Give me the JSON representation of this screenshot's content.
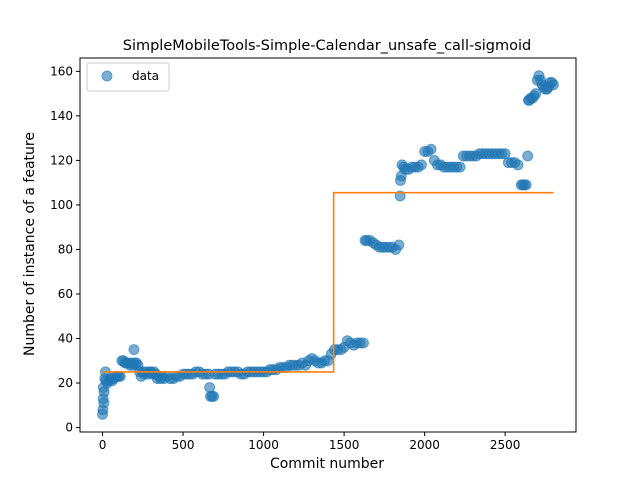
{
  "chart_data": {
    "type": "scatter",
    "title": "SimpleMobileTools-Simple-Calendar_unsafe_call-sigmoid",
    "xlabel": "Commit number",
    "ylabel": "Number of instance of a feature",
    "xlim": [
      -140,
      2940
    ],
    "ylim": [
      -2,
      166
    ],
    "xticks": [
      0,
      500,
      1000,
      1500,
      2000,
      2500
    ],
    "yticks": [
      0,
      20,
      40,
      60,
      80,
      100,
      120,
      140,
      160
    ],
    "legend": {
      "entries": [
        "data"
      ],
      "placement": "top-left"
    },
    "colors": {
      "data": "#1f77b4",
      "fit": "#ff7f0e"
    },
    "series": [
      {
        "name": "data",
        "kind": "scatter",
        "points": [
          [
            0,
            6
          ],
          [
            2,
            8
          ],
          [
            4,
            13
          ],
          [
            5,
            18
          ],
          [
            8,
            11
          ],
          [
            10,
            16
          ],
          [
            14,
            22
          ],
          [
            18,
            25
          ],
          [
            20,
            21
          ],
          [
            30,
            20
          ],
          [
            40,
            21
          ],
          [
            50,
            22
          ],
          [
            60,
            21
          ],
          [
            70,
            22
          ],
          [
            80,
            23
          ],
          [
            90,
            23
          ],
          [
            100,
            23
          ],
          [
            110,
            23
          ],
          [
            120,
            30
          ],
          [
            130,
            30
          ],
          [
            140,
            29
          ],
          [
            150,
            29
          ],
          [
            160,
            29
          ],
          [
            170,
            28
          ],
          [
            180,
            29
          ],
          [
            190,
            28
          ],
          [
            195,
            35
          ],
          [
            200,
            29
          ],
          [
            210,
            29
          ],
          [
            220,
            28
          ],
          [
            230,
            25
          ],
          [
            240,
            23
          ],
          [
            250,
            25
          ],
          [
            260,
            24
          ],
          [
            270,
            25
          ],
          [
            280,
            24
          ],
          [
            290,
            25
          ],
          [
            300,
            25
          ],
          [
            310,
            24
          ],
          [
            320,
            25
          ],
          [
            330,
            24
          ],
          [
            340,
            22
          ],
          [
            350,
            23
          ],
          [
            360,
            22
          ],
          [
            370,
            23
          ],
          [
            380,
            22
          ],
          [
            400,
            23
          ],
          [
            420,
            22
          ],
          [
            440,
            22
          ],
          [
            460,
            23
          ],
          [
            480,
            23
          ],
          [
            500,
            24
          ],
          [
            520,
            24
          ],
          [
            540,
            24
          ],
          [
            560,
            24
          ],
          [
            580,
            25
          ],
          [
            600,
            25
          ],
          [
            620,
            24
          ],
          [
            640,
            24
          ],
          [
            660,
            24
          ],
          [
            665,
            18
          ],
          [
            670,
            14
          ],
          [
            680,
            14
          ],
          [
            690,
            14
          ],
          [
            700,
            24
          ],
          [
            720,
            24
          ],
          [
            740,
            24
          ],
          [
            760,
            24
          ],
          [
            780,
            25
          ],
          [
            800,
            25
          ],
          [
            820,
            25
          ],
          [
            840,
            25
          ],
          [
            860,
            24
          ],
          [
            880,
            24
          ],
          [
            900,
            25
          ],
          [
            920,
            25
          ],
          [
            940,
            25
          ],
          [
            960,
            25
          ],
          [
            980,
            25
          ],
          [
            1000,
            25
          ],
          [
            1020,
            25
          ],
          [
            1040,
            26
          ],
          [
            1060,
            26
          ],
          [
            1080,
            26
          ],
          [
            1100,
            27
          ],
          [
            1120,
            27
          ],
          [
            1140,
            27
          ],
          [
            1160,
            28
          ],
          [
            1180,
            28
          ],
          [
            1200,
            28
          ],
          [
            1220,
            28
          ],
          [
            1240,
            29
          ],
          [
            1260,
            28
          ],
          [
            1280,
            30
          ],
          [
            1300,
            31
          ],
          [
            1320,
            30
          ],
          [
            1340,
            29
          ],
          [
            1360,
            29
          ],
          [
            1380,
            30
          ],
          [
            1400,
            30
          ],
          [
            1420,
            33
          ],
          [
            1440,
            35
          ],
          [
            1460,
            35
          ],
          [
            1480,
            35
          ],
          [
            1500,
            36
          ],
          [
            1520,
            39
          ],
          [
            1540,
            38
          ],
          [
            1560,
            37
          ],
          [
            1580,
            38
          ],
          [
            1600,
            38
          ],
          [
            1620,
            38
          ],
          [
            1630,
            84
          ],
          [
            1640,
            84
          ],
          [
            1660,
            84
          ],
          [
            1680,
            83
          ],
          [
            1700,
            82
          ],
          [
            1720,
            81
          ],
          [
            1740,
            81
          ],
          [
            1760,
            81
          ],
          [
            1780,
            81
          ],
          [
            1800,
            81
          ],
          [
            1820,
            80
          ],
          [
            1840,
            82
          ],
          [
            1848,
            104
          ],
          [
            1850,
            111
          ],
          [
            1855,
            113
          ],
          [
            1860,
            118
          ],
          [
            1870,
            117
          ],
          [
            1880,
            116
          ],
          [
            1900,
            116
          ],
          [
            1920,
            117
          ],
          [
            1940,
            117
          ],
          [
            1960,
            117
          ],
          [
            1980,
            118
          ],
          [
            2000,
            124
          ],
          [
            2020,
            124
          ],
          [
            2040,
            125
          ],
          [
            2060,
            120
          ],
          [
            2080,
            118
          ],
          [
            2100,
            118
          ],
          [
            2120,
            117
          ],
          [
            2140,
            117
          ],
          [
            2160,
            117
          ],
          [
            2180,
            117
          ],
          [
            2200,
            117
          ],
          [
            2220,
            117
          ],
          [
            2240,
            122
          ],
          [
            2260,
            122
          ],
          [
            2280,
            122
          ],
          [
            2300,
            122
          ],
          [
            2320,
            122
          ],
          [
            2340,
            123
          ],
          [
            2360,
            123
          ],
          [
            2380,
            123
          ],
          [
            2400,
            123
          ],
          [
            2420,
            123
          ],
          [
            2440,
            123
          ],
          [
            2460,
            123
          ],
          [
            2480,
            123
          ],
          [
            2500,
            123
          ],
          [
            2520,
            119
          ],
          [
            2540,
            119
          ],
          [
            2560,
            119
          ],
          [
            2580,
            118
          ],
          [
            2600,
            109
          ],
          [
            2610,
            109
          ],
          [
            2620,
            109
          ],
          [
            2630,
            109
          ],
          [
            2640,
            122
          ],
          [
            2645,
            147
          ],
          [
            2650,
            147
          ],
          [
            2660,
            148
          ],
          [
            2670,
            148
          ],
          [
            2680,
            149
          ],
          [
            2690,
            150
          ],
          [
            2700,
            156
          ],
          [
            2710,
            158
          ],
          [
            2720,
            156
          ],
          [
            2730,
            154
          ],
          [
            2740,
            153
          ],
          [
            2750,
            152
          ],
          [
            2760,
            152
          ],
          [
            2770,
            153
          ],
          [
            2780,
            155
          ],
          [
            2790,
            155
          ],
          [
            2800,
            154
          ]
        ]
      },
      {
        "kind": "step-line",
        "points": [
          [
            0,
            25
          ],
          [
            1435,
            25
          ],
          [
            1435,
            105.5
          ],
          [
            2800,
            105.5
          ]
        ]
      }
    ]
  }
}
